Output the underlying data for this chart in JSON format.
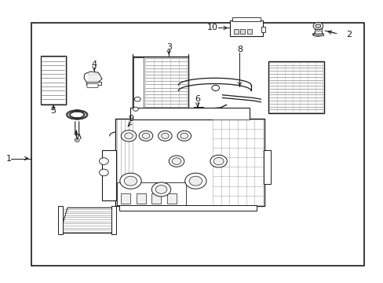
{
  "bg_color": "#ffffff",
  "line_color": "#1a1a1a",
  "text_color": "#1a1a1a",
  "fig_width": 4.89,
  "fig_height": 3.6,
  "dpi": 100,
  "border": [
    0.08,
    0.06,
    0.87,
    0.86
  ],
  "label_positions": {
    "1": [
      0.042,
      0.44,
      0.08,
      0.44
    ],
    "2": [
      0.915,
      0.88,
      0.87,
      0.88
    ],
    "3": [
      0.44,
      0.82,
      0.44,
      0.76
    ],
    "4": [
      0.3,
      0.76,
      0.3,
      0.7
    ],
    "5": [
      0.155,
      0.57,
      0.155,
      0.61
    ],
    "6": [
      0.52,
      0.56,
      0.52,
      0.62
    ],
    "7": [
      0.195,
      0.49,
      0.195,
      0.55
    ],
    "8": [
      0.62,
      0.82,
      0.62,
      0.76
    ],
    "9": [
      0.34,
      0.5,
      0.34,
      0.54
    ],
    "10": [
      0.58,
      0.895,
      0.62,
      0.895
    ]
  }
}
